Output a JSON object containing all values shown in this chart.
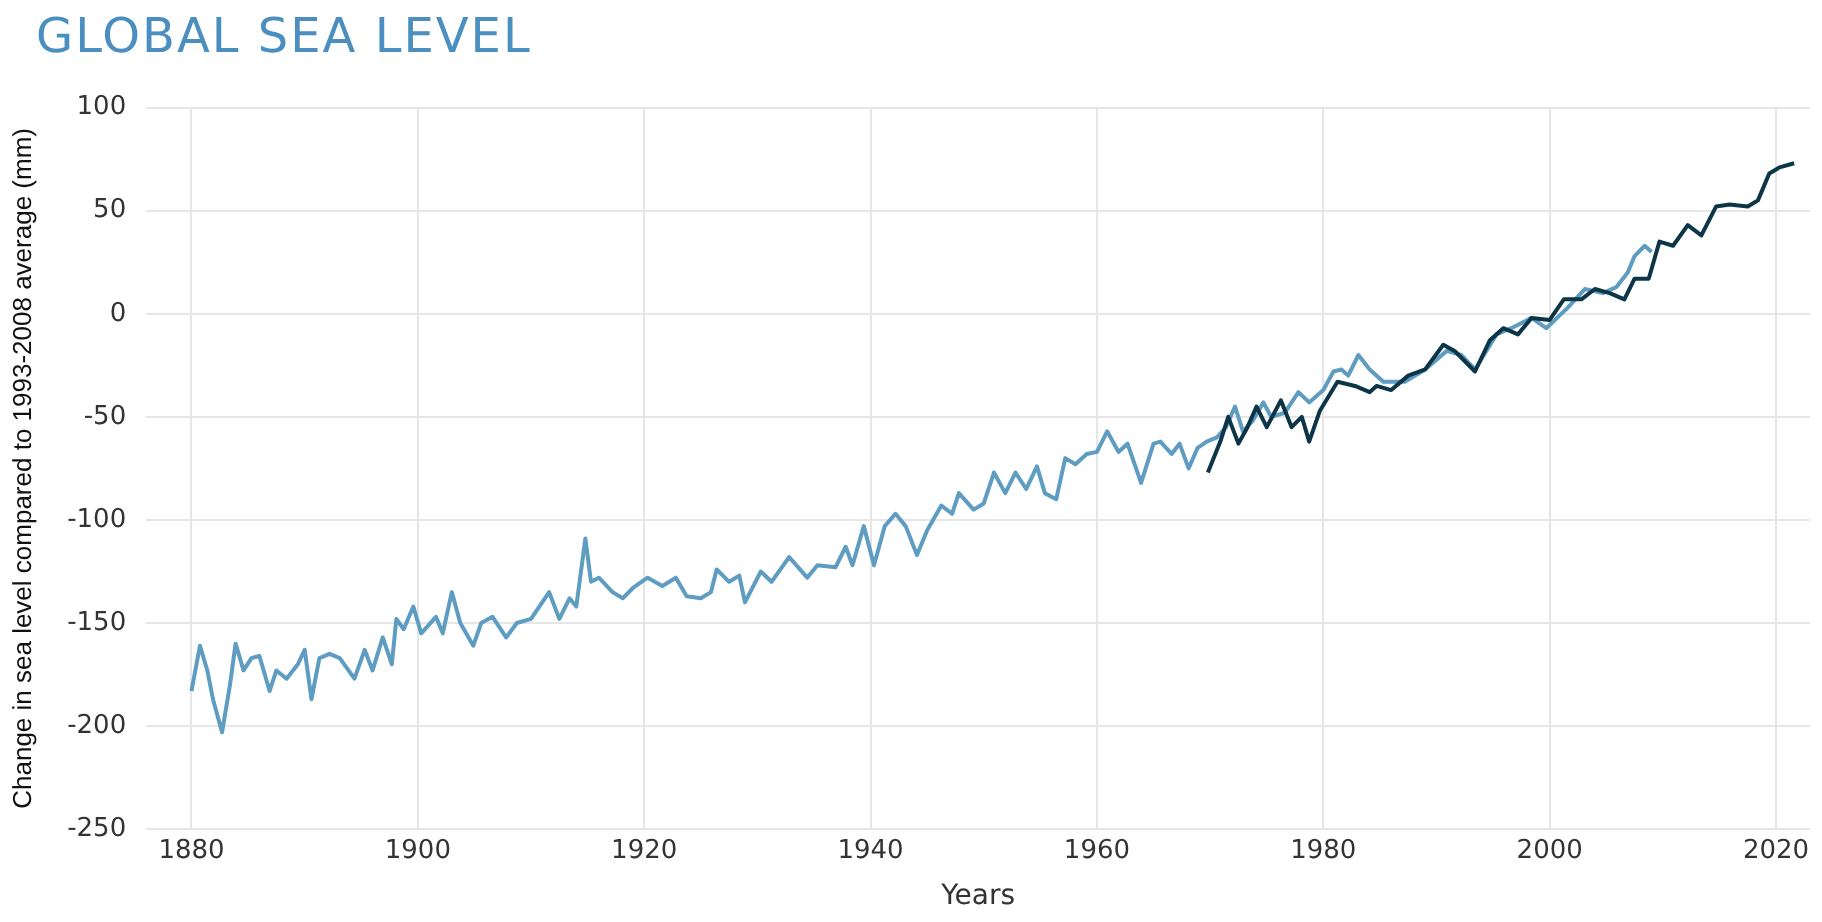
{
  "chart_data": {
    "type": "line",
    "title": "GLOBAL SEA LEVEL",
    "xlabel": "Years",
    "ylabel": "Change in sea level compared to 1993-2008 average (mm)",
    "xlim": [
      1876,
      2023
    ],
    "xticks": [
      1880,
      1900,
      1920,
      1940,
      1960,
      1980,
      2000,
      2020
    ],
    "ylim": [
      -250,
      100
    ],
    "yticks": [
      -250,
      -200,
      -150,
      -100,
      -50,
      0,
      50,
      100
    ],
    "grid": true,
    "legend": false,
    "marker": "none",
    "series": [
      {
        "color": "#5e9cc2",
        "x": [
          1880,
          1880.75,
          1881.4,
          1881.9,
          1882.7,
          1883.4,
          1883.9,
          1884.6,
          1885.3,
          1886,
          1886.9,
          1887.5,
          1888.4,
          1889.4,
          1890,
          1890.6,
          1891.3,
          1892.2,
          1893.1,
          1894.4,
          1895.3,
          1896,
          1896.9,
          1897.7,
          1898.1,
          1898.75,
          1899.6,
          1900.3,
          1901.6,
          1902.2,
          1903,
          1903.75,
          1904.9,
          1905.6,
          1906.6,
          1907.8,
          1908.75,
          1910,
          1911.6,
          1912.5,
          1913.4,
          1914,
          1914.8,
          1915.3,
          1916,
          1917.2,
          1918.1,
          1919,
          1920.3,
          1921.6,
          1922.8,
          1923.75,
          1925,
          1925.9,
          1926.4,
          1927.5,
          1928.4,
          1928.9,
          1930.3,
          1931.25,
          1932.8,
          1934.4,
          1935.3,
          1936.9,
          1937.8,
          1938.4,
          1939.4,
          1940.3,
          1941.25,
          1942.2,
          1943.1,
          1944.1,
          1945,
          1946.25,
          1947.2,
          1947.8,
          1949.1,
          1950,
          1950.9,
          1951.9,
          1952.8,
          1953.75,
          1954.7,
          1955.4,
          1956.4,
          1957.2,
          1958.1,
          1959.1,
          1960,
          1960.9,
          1961.9,
          1962.7,
          1963.9,
          1965,
          1965.6,
          1966.6,
          1967.3,
          1968.1,
          1968.9,
          1969.7,
          1970.6,
          1971.4,
          1972.2,
          1972.9,
          1973.75,
          1974.7,
          1975.4,
          1976.6,
          1977.8,
          1978.75,
          1980,
          1980.9,
          1981.6,
          1982.2,
          1983.1,
          1984.1,
          1985.3,
          1987.2,
          1989,
          1990.9,
          1992.2,
          1993.4,
          1995.3,
          1996.6,
          1998.4,
          1999.7,
          2001.6,
          2003.1,
          2004.7,
          2005.9,
          2006.9,
          2007.5,
          2008.4,
          2009
        ],
        "values": [
          -183,
          -161,
          -173,
          -187,
          -203,
          -180,
          -160,
          -173,
          -167,
          -166,
          -183,
          -173,
          -177,
          -170,
          -163,
          -187,
          -167,
          -165,
          -167,
          -177,
          -163,
          -173,
          -157,
          -170,
          -148,
          -153,
          -142,
          -155,
          -147,
          -155,
          -135,
          -150,
          -161,
          -150,
          -147,
          -157,
          -150,
          -148,
          -135,
          -148,
          -138,
          -142,
          -109,
          -130,
          -128,
          -135,
          -138,
          -133,
          -128,
          -132,
          -128,
          -137,
          -138,
          -135,
          -124,
          -130,
          -127,
          -140,
          -125,
          -130,
          -118,
          -128,
          -122,
          -123,
          -113,
          -122,
          -103,
          -122,
          -103,
          -97,
          -103,
          -117,
          -105,
          -93,
          -97,
          -87,
          -95,
          -92,
          -77,
          -87,
          -77,
          -85,
          -74,
          -87,
          -90,
          -70,
          -73,
          -68,
          -67,
          -57,
          -67,
          -63,
          -82,
          -63,
          -62,
          -68,
          -63,
          -75,
          -65,
          -62,
          -60,
          -55,
          -45,
          -57,
          -52,
          -43,
          -50,
          -48,
          -38,
          -43,
          -37,
          -28,
          -27,
          -30,
          -20,
          -27,
          -33,
          -33,
          -27,
          -18,
          -20,
          -27,
          -10,
          -7,
          -2,
          -7,
          3,
          12,
          10,
          13,
          20,
          28,
          33,
          30
        ]
      },
      {
        "color": "#0d3548",
        "x": [
          1969.8,
          1970.9,
          1971.6,
          1972.5,
          1973.3,
          1974.1,
          1975,
          1976.25,
          1977.2,
          1978.1,
          1978.75,
          1979.7,
          1981.25,
          1982.8,
          1984.1,
          1984.7,
          1986,
          1987.5,
          1989,
          1990.6,
          1991.6,
          1993.4,
          1994.7,
          1995.9,
          1997.2,
          1998.4,
          2000,
          2001.25,
          2002.8,
          2004,
          2005.3,
          2006.6,
          2007.5,
          2008.75,
          2009.7,
          2010.9,
          2012.2,
          2013.4,
          2014.7,
          2015.9,
          2017.5,
          2018.4,
          2019.4,
          2020.3,
          2021.6
        ],
        "values": [
          -77,
          -62,
          -50,
          -63,
          -55,
          -45,
          -55,
          -42,
          -55,
          -50,
          -62,
          -47,
          -33,
          -35,
          -38,
          -35,
          -37,
          -30,
          -27,
          -15,
          -18,
          -28,
          -13,
          -7,
          -10,
          -2,
          -3,
          7,
          7,
          12,
          10,
          7,
          17,
          17,
          35,
          33,
          43,
          38,
          52,
          53,
          52,
          55,
          68,
          71,
          73
        ]
      }
    ]
  }
}
